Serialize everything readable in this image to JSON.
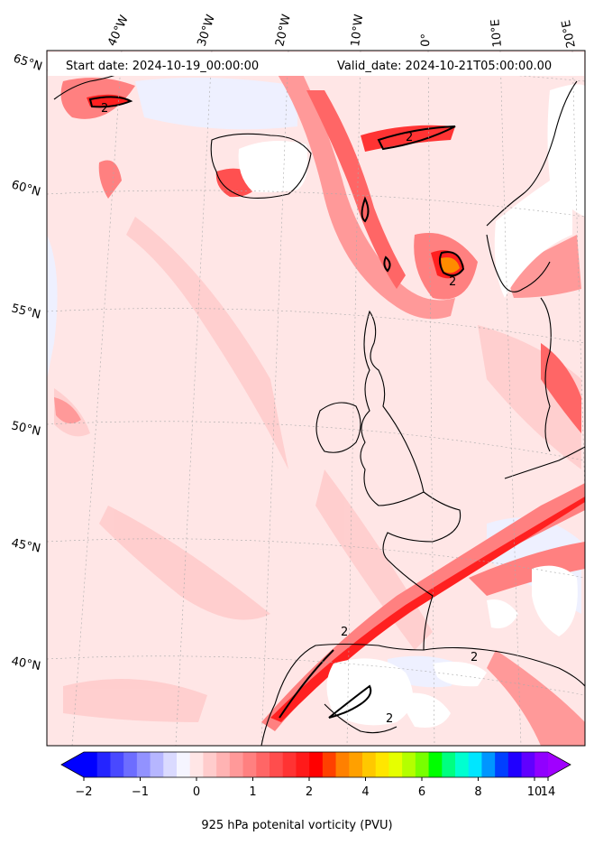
{
  "map": {
    "header": {
      "start_date": "Start date: 2024-10-19_00:00:00",
      "valid_date": "Valid_date: 2024-10-21T05:00:00.00"
    },
    "lon_labels": [
      "40°W",
      "30°W",
      "20°W",
      "10°W",
      "0°",
      "10°E",
      "20°E"
    ],
    "lat_labels": [
      "65°N",
      "60°N",
      "55°N",
      "50°N",
      "45°N",
      "40°N"
    ],
    "contour_label": "2",
    "colors": {
      "background_fill": "#ffe6e6",
      "coastline": "#000000",
      "gridline": "#aaaaaa"
    }
  },
  "colorbar": {
    "label": "925 hPa potenital vorticity (PVU)",
    "ticks": [
      "−2",
      "−1",
      "0",
      "1",
      "2",
      "4",
      "6",
      "8",
      "10",
      "14"
    ],
    "colors": [
      "#0000ff",
      "#2424ff",
      "#4949ff",
      "#6d6dff",
      "#9292ff",
      "#b6b6ff",
      "#dadaff",
      "#f5f5ff",
      "#ffe6e6",
      "#ffcccc",
      "#ffb3b3",
      "#ff9999",
      "#ff8080",
      "#ff6666",
      "#ff4d4d",
      "#ff3333",
      "#ff1a1a",
      "#ff0000",
      "#ff4000",
      "#ff8000",
      "#ffa000",
      "#ffc800",
      "#ffe600",
      "#e6ff00",
      "#b4ff00",
      "#78ff00",
      "#00ff00",
      "#00ff80",
      "#00ffd0",
      "#00e6ff",
      "#0096ff",
      "#0040ff",
      "#2000ff",
      "#6000ff",
      "#9000ff"
    ],
    "under_color": "#0000ff",
    "over_color": "#a000ff"
  }
}
